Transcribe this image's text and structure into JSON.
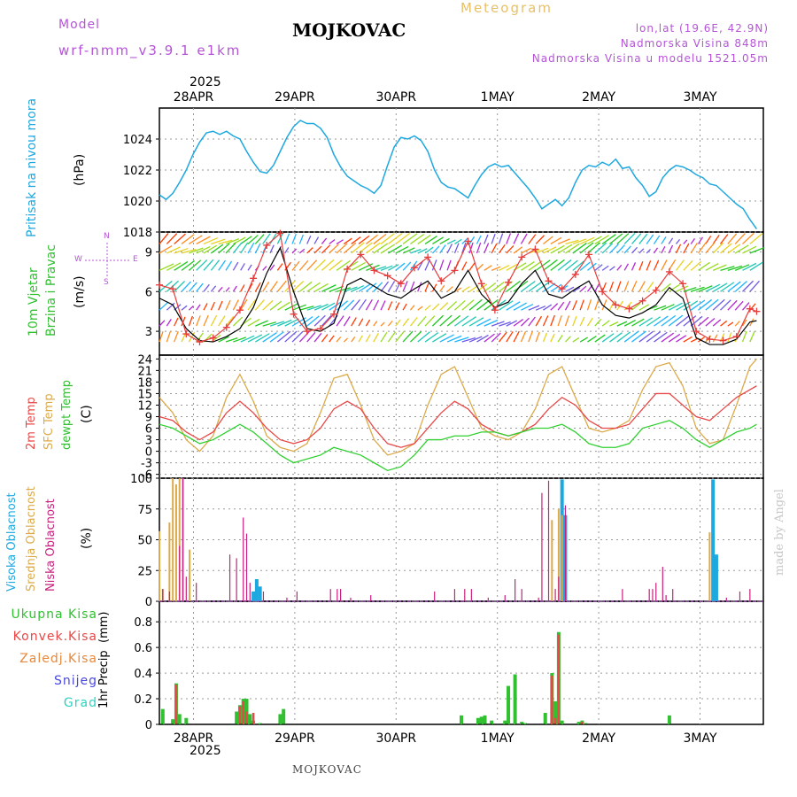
{
  "header": {
    "model_label": "Model",
    "model_name": "wrf-nmm_v3.9.1 e1km",
    "station": "MOJKOVAC",
    "product": "Meteogram",
    "coords": "lon,lat (19.6E, 42.9N)",
    "elevation": "Nadmorska Visina 848m",
    "model_elevation": "Nadmorska Visina u modelu 1521.05m",
    "year": "2025",
    "footer_station": "MOJKOVAC",
    "credit": "made by Angel"
  },
  "colors": {
    "pressure": "#1ea8e0",
    "wind_speed": "#000000",
    "wind_gust": "#e83c3c",
    "t2m": "#e84848",
    "sfc": "#dcaa4a",
    "dew": "#30d030",
    "high_cloud": "#1ea8e0",
    "mid_cloud": "#dcaa4a",
    "low_cloud": "#c8207c",
    "total_precip": "#30c030",
    "conv_precip": "#e84848",
    "frz_precip": "#e8883c",
    "snow": "#4848e0",
    "graupel": "#30d0c0"
  },
  "axes": {
    "days": [
      "28APR",
      "29APR",
      "30APR",
      "1MAY",
      "2MAY",
      "3MAY"
    ]
  },
  "chart_data": [
    {
      "type": "line",
      "id": "pressure",
      "ylabel": "Pritisak na nivou mora",
      "unit": "(hPa)",
      "ylim": [
        1018,
        1026
      ],
      "yticks": [
        1018,
        1020,
        1022,
        1024
      ],
      "x_hours": [
        0,
        2,
        4,
        6,
        8,
        10,
        12,
        14,
        16,
        18,
        20,
        22,
        24,
        26,
        28,
        30,
        32,
        34,
        36,
        38,
        40,
        42,
        44,
        46,
        48,
        50,
        52,
        54,
        56,
        58,
        60,
        62,
        64,
        66,
        68,
        70,
        72,
        74,
        76,
        78,
        80,
        82,
        84,
        86,
        88,
        90,
        92,
        94,
        96,
        98,
        100,
        102,
        104,
        106,
        108,
        110,
        112,
        114,
        116,
        118,
        120,
        122,
        124,
        126,
        128,
        130,
        132,
        134,
        136,
        138,
        140,
        142,
        144,
        146,
        148,
        150,
        152,
        154,
        156,
        158,
        160,
        162,
        164,
        166,
        168,
        170,
        172,
        174,
        176,
        178
      ],
      "values": [
        1020.4,
        1020.1,
        1020.5,
        1021.2,
        1022.0,
        1023.0,
        1023.8,
        1024.4,
        1024.5,
        1024.3,
        1024.5,
        1024.2,
        1024.0,
        1023.2,
        1022.5,
        1021.9,
        1021.8,
        1022.3,
        1023.2,
        1024.1,
        1024.8,
        1025.2,
        1025.0,
        1025.0,
        1024.7,
        1024.1,
        1023.0,
        1022.2,
        1021.6,
        1021.3,
        1021.0,
        1020.8,
        1020.5,
        1021.0,
        1022.3,
        1023.5,
        1024.1,
        1024.0,
        1024.2,
        1023.9,
        1023.2,
        1022.0,
        1021.2,
        1020.9,
        1020.8,
        1020.5,
        1020.2,
        1021.0,
        1021.7,
        1022.2,
        1022.4,
        1022.2,
        1022.3,
        1021.8,
        1021.3,
        1020.8,
        1020.2,
        1019.5,
        1019.8,
        1020.1,
        1019.7,
        1020.2,
        1021.2,
        1022.0,
        1022.3,
        1022.2,
        1022.5,
        1022.3,
        1022.7,
        1022.1,
        1022.2,
        1021.5,
        1021.0,
        1020.3,
        1020.6,
        1021.5,
        1022.0,
        1022.3,
        1022.2,
        1022.0,
        1021.7,
        1021.5,
        1021.1,
        1021.0,
        1020.6,
        1020.2,
        1019.8,
        1019.5,
        1018.8,
        1018.2
      ]
    },
    {
      "type": "line",
      "id": "wind",
      "ylabel": "10m Vjetar Brzina i Pravac",
      "unit": "(m/s)",
      "direction_legend": {
        "n": "N",
        "s": "S",
        "w": "W",
        "e": "E"
      },
      "ylim": [
        1.2,
        10.5
      ],
      "yticks": [
        3,
        6,
        9
      ],
      "series": [
        {
          "key": "speed",
          "x_hours": [
            0,
            4,
            8,
            12,
            16,
            20,
            24,
            28,
            32,
            36,
            40,
            44,
            48,
            52,
            56,
            60,
            64,
            68,
            72,
            76,
            80,
            84,
            88,
            92,
            96,
            100,
            104,
            108,
            112,
            116,
            120,
            124,
            128,
            132,
            136,
            140,
            144,
            148,
            152,
            156,
            160,
            164,
            168,
            172,
            176,
            178
          ],
          "values": [
            5.5,
            5.0,
            3.2,
            2.3,
            2.2,
            2.6,
            3.2,
            4.8,
            7.4,
            9.3,
            6.0,
            3.2,
            3.0,
            3.6,
            6.5,
            7.0,
            6.4,
            5.8,
            5.5,
            6.2,
            6.8,
            5.5,
            6.0,
            7.6,
            5.8,
            4.8,
            5.2,
            6.6,
            7.6,
            5.8,
            5.5,
            6.2,
            6.8,
            5.0,
            4.2,
            4.0,
            4.4,
            5.0,
            6.3,
            5.5,
            2.5,
            2.0,
            2.0,
            2.4,
            3.7,
            3.8
          ]
        },
        {
          "key": "gust",
          "x_hours": [
            0,
            4,
            8,
            12,
            16,
            20,
            24,
            28,
            32,
            36,
            40,
            44,
            48,
            52,
            56,
            60,
            64,
            68,
            72,
            76,
            80,
            84,
            88,
            92,
            96,
            100,
            104,
            108,
            112,
            116,
            120,
            124,
            128,
            132,
            136,
            140,
            144,
            148,
            152,
            156,
            160,
            164,
            168,
            172,
            176,
            178
          ],
          "values": [
            6.5,
            6.2,
            2.8,
            2.2,
            2.5,
            3.3,
            4.6,
            7.0,
            9.5,
            10.4,
            4.3,
            3.0,
            3.2,
            4.3,
            7.7,
            8.8,
            7.6,
            7.2,
            6.6,
            7.8,
            8.6,
            6.8,
            7.6,
            9.8,
            6.6,
            4.6,
            6.7,
            8.6,
            9.2,
            6.8,
            6.2,
            7.3,
            8.8,
            6.0,
            5.0,
            4.7,
            5.3,
            6.1,
            7.5,
            6.6,
            3.0,
            2.4,
            2.3,
            2.6,
            4.7,
            4.5
          ]
        }
      ]
    },
    {
      "type": "line",
      "id": "temperature",
      "ylabel": "2m Temp",
      "ylabel2": "SFC Temp",
      "ylabel3": "dewpt Temp",
      "unit": "(C)",
      "ylim": [
        -7,
        25
      ],
      "yticks": [
        -6,
        -3,
        0,
        3,
        6,
        9,
        12,
        15,
        18,
        21,
        24
      ],
      "series": [
        {
          "key": "t2m",
          "x_hours": [
            0,
            4,
            8,
            12,
            16,
            20,
            24,
            28,
            32,
            36,
            40,
            44,
            48,
            52,
            56,
            60,
            64,
            68,
            72,
            76,
            80,
            84,
            88,
            92,
            96,
            100,
            104,
            108,
            112,
            116,
            120,
            124,
            128,
            132,
            136,
            140,
            144,
            148,
            152,
            156,
            160,
            164,
            168,
            172,
            176,
            178
          ],
          "values": [
            9,
            8,
            5,
            3,
            5,
            10,
            13,
            10,
            6,
            3,
            2,
            3,
            6,
            11,
            13,
            11,
            6,
            2,
            1,
            2,
            6,
            10,
            13,
            11,
            7,
            5,
            4,
            5,
            7,
            11,
            14,
            12,
            8,
            6,
            6,
            7,
            11,
            15,
            15,
            12,
            9,
            8,
            11,
            14,
            16,
            17
          ]
        },
        {
          "key": "sfc",
          "x_hours": [
            0,
            4,
            8,
            12,
            16,
            20,
            24,
            28,
            32,
            36,
            40,
            44,
            48,
            52,
            56,
            60,
            64,
            68,
            72,
            76,
            80,
            84,
            88,
            92,
            96,
            100,
            104,
            108,
            112,
            116,
            120,
            124,
            128,
            132,
            136,
            140,
            144,
            148,
            152,
            156,
            160,
            164,
            168,
            172,
            176,
            178
          ],
          "values": [
            14,
            10,
            3,
            0,
            4,
            14,
            20,
            13,
            4,
            1,
            0,
            2,
            10,
            19,
            20,
            12,
            3,
            -1,
            0,
            2,
            12,
            20,
            22,
            14,
            6,
            4,
            3,
            5,
            11,
            20,
            22,
            14,
            6,
            5,
            6,
            8,
            16,
            22,
            23,
            17,
            6,
            2,
            3,
            12,
            22,
            24
          ]
        },
        {
          "key": "dew",
          "x_hours": [
            0,
            4,
            8,
            12,
            16,
            20,
            24,
            28,
            32,
            36,
            40,
            44,
            48,
            52,
            56,
            60,
            64,
            68,
            72,
            76,
            80,
            84,
            88,
            92,
            96,
            100,
            104,
            108,
            112,
            116,
            120,
            124,
            128,
            132,
            136,
            140,
            144,
            148,
            152,
            156,
            160,
            164,
            168,
            172,
            176,
            178
          ],
          "values": [
            7,
            6,
            4,
            2,
            3,
            5,
            7,
            5,
            2,
            -1,
            -3,
            -2,
            -1,
            1,
            0,
            -1,
            -3,
            -5,
            -4,
            -1,
            3,
            3,
            4,
            4,
            5,
            5,
            4,
            5,
            6,
            6,
            7,
            5,
            2,
            1,
            1,
            2,
            6,
            7,
            8,
            6,
            3,
            1,
            3,
            5,
            6,
            7
          ]
        }
      ]
    },
    {
      "type": "bar",
      "id": "clouds",
      "ylabel": "Visoka Oblacnost",
      "ylabel2": "Srednja Oblacnost",
      "ylabel3": "Niska Oblacnost",
      "unit": "(%)",
      "ylim": [
        0,
        100
      ],
      "yticks": [
        0,
        25,
        50,
        75,
        100
      ],
      "series": [
        {
          "key": "high",
          "x_hours": [
            28,
            29,
            30,
            120,
            121,
            165,
            166
          ],
          "values": [
            8,
            18,
            12,
            99,
            70,
            99,
            38
          ]
        },
        {
          "key": "mid",
          "x_hours": [
            0,
            1,
            3,
            4,
            5,
            6,
            7,
            9,
            117,
            119,
            120,
            164
          ],
          "values": [
            57,
            10,
            64,
            100,
            95,
            100,
            100,
            42,
            66,
            75,
            70,
            56
          ]
        },
        {
          "key": "low",
          "x_hours": [
            1,
            3,
            6,
            7,
            8,
            11,
            21,
            23,
            25,
            26,
            27,
            31,
            38,
            41,
            51,
            53,
            54,
            57,
            63,
            82,
            88,
            91,
            93,
            98,
            103,
            106,
            108,
            113,
            114,
            116,
            118,
            119,
            121,
            138,
            146,
            147,
            148,
            150,
            151,
            153,
            169,
            173,
            176
          ],
          "values": [
            10,
            8,
            45,
            100,
            20,
            15,
            38,
            35,
            68,
            55,
            15,
            8,
            3,
            8,
            10,
            10,
            10,
            3,
            5,
            8,
            10,
            10,
            10,
            3,
            5,
            18,
            10,
            3,
            88,
            98,
            10,
            20,
            78,
            10,
            10,
            10,
            15,
            28,
            5,
            10,
            3,
            8,
            10
          ]
        }
      ]
    },
    {
      "type": "bar",
      "id": "precip",
      "ylabel": "1hr Precip",
      "unit": "(mm)",
      "legend": [
        "Ukupna Kisa",
        "Konvek.Kisa",
        "Zaledj.Kisa",
        "Snijeg",
        "Grad"
      ],
      "ylim": [
        0,
        0.96
      ],
      "yticks": [
        0,
        0.2,
        0.4,
        0.6,
        0.8
      ],
      "series": [
        {
          "key": "total",
          "x_hours": [
            1,
            4,
            5,
            6,
            8,
            23,
            24,
            25,
            26,
            27,
            28,
            30,
            36,
            37,
            90,
            95,
            96,
            97,
            99,
            103,
            104,
            106,
            108,
            109,
            115,
            117,
            118,
            119,
            120,
            125,
            126,
            127,
            152
          ],
          "values": [
            0.12,
            0.04,
            0.32,
            0.08,
            0.05,
            0.1,
            0.15,
            0.2,
            0.2,
            0.08,
            0.03,
            0.01,
            0.08,
            0.12,
            0.07,
            0.05,
            0.06,
            0.07,
            0.03,
            0.03,
            0.3,
            0.39,
            0.02,
            0.01,
            0.09,
            0.4,
            0.18,
            0.72,
            0.03,
            0.02,
            0.03,
            0.01,
            0.07
          ]
        },
        {
          "key": "conv",
          "x_hours": [
            5,
            24,
            25,
            26,
            28,
            117,
            118,
            119,
            126
          ],
          "values": [
            0.31,
            0.14,
            0.18,
            0.1,
            0.09,
            0.38,
            0.05,
            0.7,
            0.02
          ]
        }
      ]
    }
  ]
}
